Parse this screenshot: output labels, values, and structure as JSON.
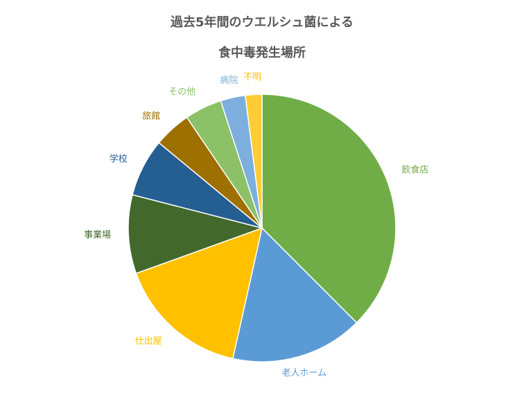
{
  "chart_data": {
    "type": "pie",
    "title_lines": [
      "過去5年間のウエルシュ菌による",
      "食中毒発生場所"
    ],
    "start_angle_deg": 0,
    "direction": "clockwise",
    "legend": "none",
    "slices": [
      {
        "label": "飲食店",
        "value": 37.5,
        "color": "#70ad47",
        "label_color": "#70ad47"
      },
      {
        "label": "老人ホーム",
        "value": 16.0,
        "color": "#5b9bd5",
        "label_color": "#5b9bd5"
      },
      {
        "label": "仕出屋",
        "value": 16.0,
        "color": "#ffc000",
        "label_color": "#ffc000"
      },
      {
        "label": "事業場",
        "value": 9.5,
        "color": "#43682b",
        "label_color": "#43682b"
      },
      {
        "label": "学校",
        "value": 7.0,
        "color": "#255e91",
        "label_color": "#255e91"
      },
      {
        "label": "旅館",
        "value": 4.5,
        "color": "#9e7000",
        "label_color": "#9e7000"
      },
      {
        "label": "その他",
        "value": 4.5,
        "color": "#8cc168",
        "label_color": "#8cc168"
      },
      {
        "label": "病院",
        "value": 3.0,
        "color": "#7cafdd",
        "label_color": "#7cafdd"
      },
      {
        "label": "不明",
        "value": 2.0,
        "color": "#ffcd33",
        "label_color": "#ffc000"
      }
    ]
  }
}
